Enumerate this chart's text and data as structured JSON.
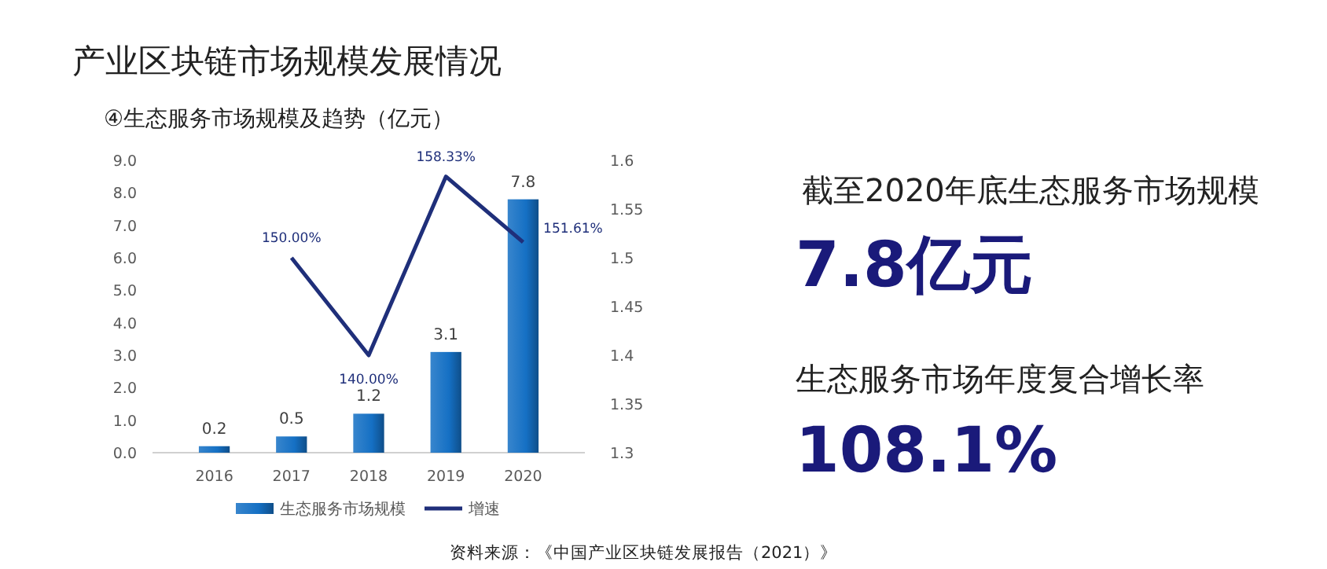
{
  "chart_data": {
    "type": "bar",
    "title": "产业区块链市场规模发展情况",
    "subtitle": "④生态服务市场规模及趋势（亿元）",
    "categories": [
      "2016",
      "2017",
      "2018",
      "2019",
      "2020"
    ],
    "series": [
      {
        "name": "生态服务市场规模",
        "color": "#1570c4",
        "values": [
          0.2,
          0.5,
          1.2,
          3.1,
          7.8
        ],
        "value_labels": [
          "0.2",
          "0.5",
          "1.2",
          "3.1",
          "7.8"
        ]
      },
      {
        "name": "增速",
        "type": "line",
        "axis": "y2",
        "color": "#1f2f7a",
        "values": [
          null,
          1.5,
          1.4,
          1.5833,
          1.5161
        ],
        "value_labels": [
          null,
          "150.00%",
          "140.00%",
          "158.33%",
          "151.61%"
        ]
      }
    ],
    "ylim": [
      0,
      9
    ],
    "yticks": [
      {
        "value": 0,
        "label": "0.0"
      },
      {
        "value": 1,
        "label": "1.0"
      },
      {
        "value": 2,
        "label": "2.0"
      },
      {
        "value": 3,
        "label": "3.0"
      },
      {
        "value": 4,
        "label": "4.0"
      },
      {
        "value": 5,
        "label": "5.0"
      },
      {
        "value": 6,
        "label": "6.0"
      },
      {
        "value": 7,
        "label": "7.0"
      },
      {
        "value": 8,
        "label": "8.0"
      },
      {
        "value": 9,
        "label": "9.0"
      }
    ],
    "y2lim": [
      1.3,
      1.6
    ],
    "y2ticks": [
      1.3,
      1.35,
      1.4,
      1.45,
      1.5,
      1.55,
      1.6
    ],
    "legend": "bottom",
    "grid": false,
    "marker": "none",
    "annotations": [
      "截至2020年底生态服务市场规模",
      "7.8亿元",
      "生态服务市场年度复合增长率",
      "108.1%",
      "资料来源：《中国产业区块链发展报告（2021）》"
    ]
  }
}
